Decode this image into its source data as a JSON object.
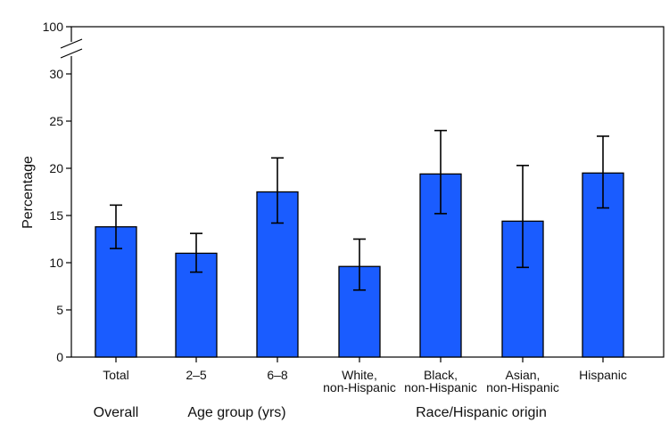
{
  "chart_data": {
    "type": "bar",
    "ylabel": "Percentage",
    "xlabel": "",
    "ylim": [
      0,
      30
    ],
    "y_break_top": 100,
    "yticks": [
      0,
      5,
      10,
      15,
      20,
      25,
      30
    ],
    "bar_color": "#1a5cff",
    "categories": [
      [
        "Total"
      ],
      [
        "2–5"
      ],
      [
        "6–8"
      ],
      [
        "White,",
        "non-Hispanic"
      ],
      [
        "Black,",
        "non-Hispanic"
      ],
      [
        "Asian,",
        "non-Hispanic"
      ],
      [
        "Hispanic"
      ]
    ],
    "values": [
      13.8,
      11.0,
      17.5,
      9.6,
      19.4,
      14.4,
      19.5
    ],
    "ci_lower": [
      11.5,
      9.0,
      14.2,
      7.1,
      15.2,
      9.5,
      15.8
    ],
    "ci_upper": [
      16.1,
      13.1,
      21.1,
      12.5,
      24.0,
      20.3,
      23.4
    ],
    "groups": [
      {
        "label": "Overall",
        "from": 0,
        "to": 0
      },
      {
        "label": "Age group (yrs)",
        "from": 1,
        "to": 2
      },
      {
        "label": "Race/Hispanic origin",
        "from": 3,
        "to": 6
      }
    ]
  }
}
